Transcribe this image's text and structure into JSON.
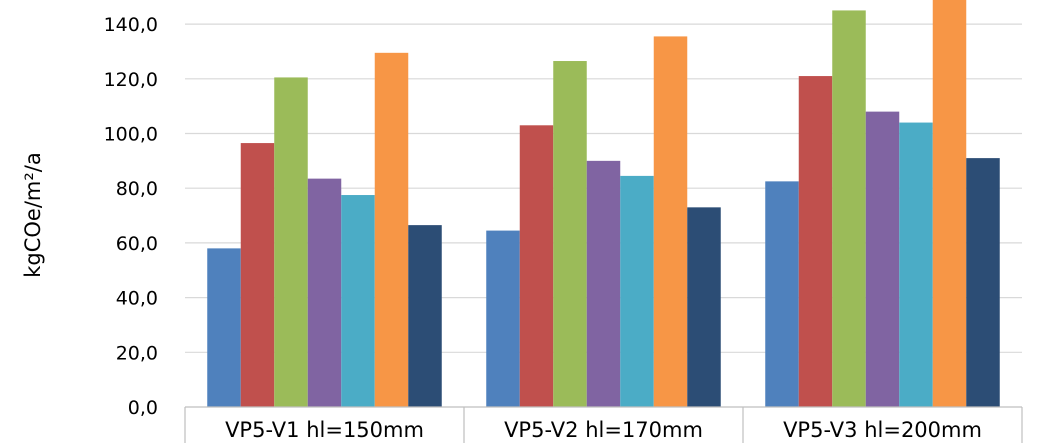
{
  "chart_data": {
    "type": "bar",
    "title": "",
    "xlabel": "",
    "ylabel": "kgCOe/m²/a",
    "ylim": [
      0,
      145
    ],
    "yticks": [
      "0,0",
      "20,0",
      "40,0",
      "60,0",
      "80,0",
      "100,0",
      "120,0",
      "140,0"
    ],
    "grid": true,
    "legend": "none",
    "categories": [
      "VP5-V1 hl=150mm",
      "VP5-V2 hl=170mm",
      "VP5-V3 hl=200mm"
    ],
    "series": [
      {
        "color": "#4F81BD",
        "values": [
          58.0,
          64.5,
          82.5
        ]
      },
      {
        "color": "#C0504D",
        "values": [
          96.5,
          103.0,
          121.0
        ]
      },
      {
        "color": "#9BBB59",
        "values": [
          120.5,
          126.5,
          145.0
        ]
      },
      {
        "color": "#8064A2",
        "values": [
          83.5,
          90.0,
          108.0
        ]
      },
      {
        "color": "#4BACC6",
        "values": [
          77.5,
          84.5,
          104.0
        ]
      },
      {
        "color": "#F79646",
        "values": [
          129.5,
          135.5,
          153.0
        ]
      },
      {
        "color": "#2C4D75",
        "values": [
          66.5,
          73.0,
          91.0
        ]
      }
    ]
  }
}
